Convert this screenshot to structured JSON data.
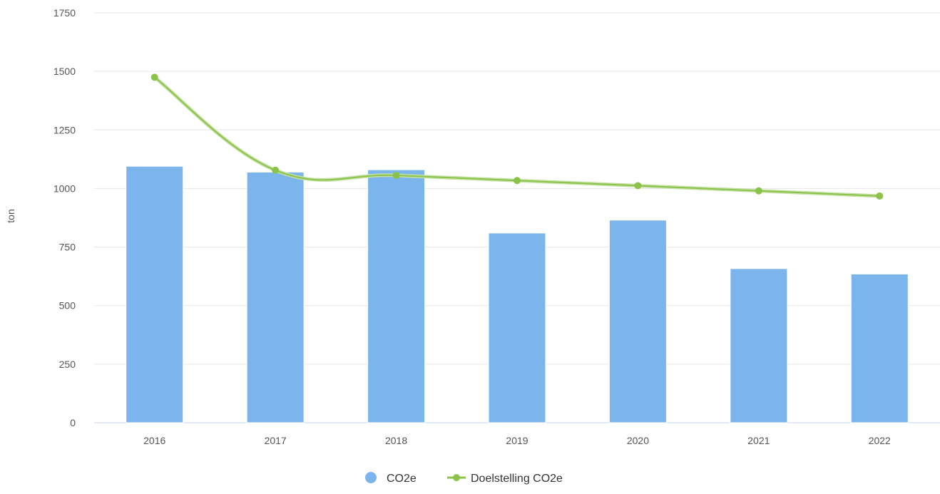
{
  "chart_data": {
    "type": "bar",
    "categories": [
      "2016",
      "2017",
      "2018",
      "2019",
      "2020",
      "2021",
      "2022"
    ],
    "series": [
      {
        "name": "CO2e",
        "type": "bar",
        "values": [
          1095,
          1070,
          1080,
          810,
          865,
          658,
          635
        ],
        "color": "#7cb5ec"
      },
      {
        "name": "Doelstelling CO2e",
        "type": "line",
        "values": [
          1475,
          1078,
          1056,
          1034,
          1012,
          990,
          968
        ],
        "color": "#8bc34a"
      }
    ],
    "xlabel": "",
    "ylabel": "ton",
    "ylim": [
      0,
      1750
    ],
    "yticks": [
      "0",
      "250",
      "500",
      "750",
      "1000",
      "1250",
      "1500",
      "1750"
    ],
    "grid": true,
    "legend_position": "bottom-center"
  }
}
